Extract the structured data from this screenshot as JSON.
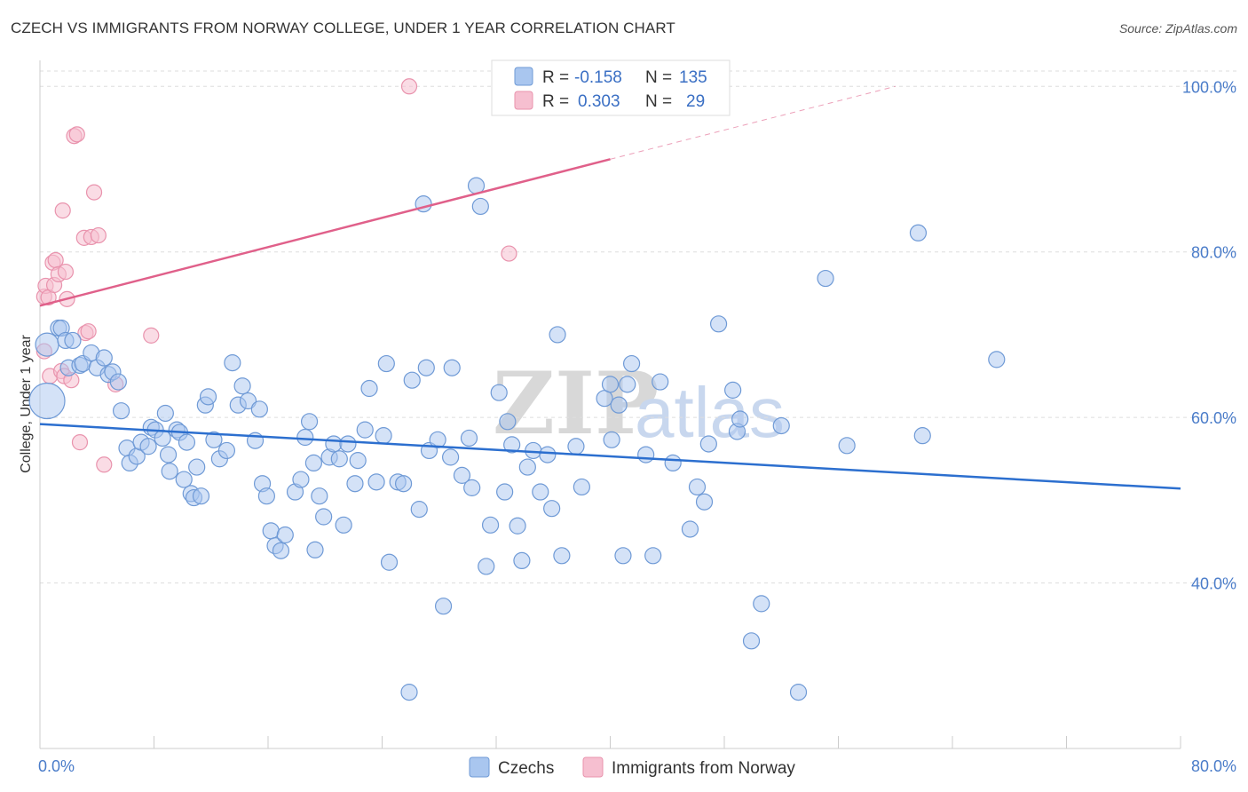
{
  "title": "CZECH VS IMMIGRANTS FROM NORWAY COLLEGE, UNDER 1 YEAR CORRELATION CHART",
  "source": "Source: ZipAtlas.com",
  "colors": {
    "blue_fill": "#a9c6ef",
    "blue_stroke": "#6f9ad6",
    "blue_line": "#2c6fcf",
    "pink_fill": "#f6bfd0",
    "pink_stroke": "#e993ad",
    "pink_line": "#e0608a",
    "grid": "#dddddd",
    "tick_text": "#4a7cc9"
  },
  "chart_data": {
    "type": "scatter",
    "title": "CZECH VS IMMIGRANTS FROM NORWAY COLLEGE, UNDER 1 YEAR CORRELATION CHART",
    "xlabel": "",
    "ylabel": "College, Under 1 year",
    "xlim": [
      0,
      80
    ],
    "ylim": [
      20,
      104
    ],
    "x_ticks": [
      "0.0%",
      "80.0%"
    ],
    "y_ticks": [
      {
        "value": 100,
        "label": "100.0%"
      },
      {
        "value": 80,
        "label": "80.0%"
      },
      {
        "value": 60,
        "label": "60.0%"
      },
      {
        "value": 40,
        "label": "40.0%"
      }
    ],
    "legend": [
      {
        "name": "Czechs",
        "r_label": "R =",
        "r": "-0.158",
        "n_label": "N =",
        "n": "135"
      },
      {
        "name": "Immigrants from Norway",
        "r_label": "R =",
        "r": "0.303",
        "n_label": "N =",
        "n": "29"
      }
    ],
    "watermark": {
      "zip": "ZIP",
      "atlas": "atlas"
    },
    "series": [
      {
        "name": "Czechs",
        "trend": {
          "x0": 0,
          "y0": 59.2,
          "x1": 80,
          "y1": 51.4
        },
        "points": [
          [
            0.5,
            62.0
          ],
          [
            0.5,
            68.8
          ],
          [
            1.3,
            70.8
          ],
          [
            1.5,
            70.8
          ],
          [
            1.8,
            69.3
          ],
          [
            2.0,
            66.0
          ],
          [
            2.3,
            69.3
          ],
          [
            2.8,
            66.3
          ],
          [
            3.0,
            66.5
          ],
          [
            3.6,
            67.8
          ],
          [
            4.0,
            66.0
          ],
          [
            4.5,
            67.2
          ],
          [
            4.8,
            65.2
          ],
          [
            5.1,
            65.5
          ],
          [
            5.5,
            64.3
          ],
          [
            5.7,
            60.8
          ],
          [
            6.1,
            56.3
          ],
          [
            6.3,
            54.5
          ],
          [
            6.8,
            55.3
          ],
          [
            7.1,
            57.0
          ],
          [
            7.6,
            56.5
          ],
          [
            7.8,
            58.8
          ],
          [
            8.1,
            58.5
          ],
          [
            8.6,
            57.5
          ],
          [
            8.8,
            60.5
          ],
          [
            9.0,
            55.5
          ],
          [
            9.1,
            53.5
          ],
          [
            9.6,
            58.5
          ],
          [
            9.8,
            58.2
          ],
          [
            10.1,
            52.5
          ],
          [
            10.3,
            57.0
          ],
          [
            10.6,
            50.8
          ],
          [
            10.8,
            50.3
          ],
          [
            11.0,
            54.0
          ],
          [
            11.3,
            50.5
          ],
          [
            11.6,
            61.5
          ],
          [
            11.8,
            62.5
          ],
          [
            12.2,
            57.3
          ],
          [
            12.6,
            55.0
          ],
          [
            13.1,
            56.0
          ],
          [
            13.5,
            66.6
          ],
          [
            13.9,
            61.5
          ],
          [
            14.2,
            63.8
          ],
          [
            14.6,
            62.0
          ],
          [
            15.1,
            57.2
          ],
          [
            15.6,
            52.0
          ],
          [
            15.9,
            50.5
          ],
          [
            16.2,
            46.3
          ],
          [
            16.5,
            44.5
          ],
          [
            16.9,
            43.9
          ],
          [
            17.2,
            45.8
          ],
          [
            17.9,
            51.0
          ],
          [
            18.3,
            52.5
          ],
          [
            18.6,
            57.6
          ],
          [
            18.9,
            59.5
          ],
          [
            19.2,
            54.5
          ],
          [
            19.6,
            50.5
          ],
          [
            19.9,
            48.0
          ],
          [
            20.3,
            55.2
          ],
          [
            20.6,
            56.8
          ],
          [
            21.0,
            55.0
          ],
          [
            21.3,
            47.0
          ],
          [
            21.6,
            56.8
          ],
          [
            22.1,
            52.0
          ],
          [
            22.3,
            54.8
          ],
          [
            22.8,
            58.5
          ],
          [
            23.1,
            63.5
          ],
          [
            23.6,
            52.2
          ],
          [
            24.1,
            57.8
          ],
          [
            24.3,
            66.5
          ],
          [
            24.5,
            42.5
          ],
          [
            25.1,
            52.2
          ],
          [
            25.5,
            52.0
          ],
          [
            25.9,
            26.8
          ],
          [
            26.1,
            64.5
          ],
          [
            26.6,
            48.9
          ],
          [
            27.1,
            66.0
          ],
          [
            27.3,
            56.0
          ],
          [
            27.9,
            57.3
          ],
          [
            28.3,
            37.2
          ],
          [
            28.8,
            55.2
          ],
          [
            28.9,
            66.0
          ],
          [
            29.6,
            53.0
          ],
          [
            30.1,
            57.5
          ],
          [
            30.3,
            51.5
          ],
          [
            30.6,
            88.0
          ],
          [
            30.9,
            85.5
          ],
          [
            31.3,
            42.0
          ],
          [
            31.6,
            47.0
          ],
          [
            32.2,
            63.0
          ],
          [
            32.6,
            51.0
          ],
          [
            32.8,
            59.5
          ],
          [
            33.1,
            56.7
          ],
          [
            33.5,
            46.9
          ],
          [
            33.8,
            42.7
          ],
          [
            34.2,
            54.0
          ],
          [
            34.6,
            56.0
          ],
          [
            35.1,
            51.0
          ],
          [
            35.6,
            55.5
          ],
          [
            35.9,
            49.0
          ],
          [
            36.3,
            70.0
          ],
          [
            36.6,
            43.3
          ],
          [
            37.6,
            56.5
          ],
          [
            38.0,
            51.6
          ],
          [
            39.6,
            62.3
          ],
          [
            40.1,
            57.3
          ],
          [
            40.6,
            61.5
          ],
          [
            40.9,
            43.3
          ],
          [
            41.2,
            64.0
          ],
          [
            41.5,
            66.5
          ],
          [
            42.5,
            55.5
          ],
          [
            43.0,
            43.3
          ],
          [
            43.5,
            64.3
          ],
          [
            44.4,
            54.5
          ],
          [
            45.6,
            46.5
          ],
          [
            46.1,
            51.6
          ],
          [
            46.6,
            49.8
          ],
          [
            46.9,
            56.8
          ],
          [
            47.6,
            71.3
          ],
          [
            48.6,
            63.3
          ],
          [
            48.9,
            58.3
          ],
          [
            49.1,
            59.8
          ],
          [
            49.9,
            33.0
          ],
          [
            50.6,
            37.5
          ],
          [
            52.0,
            59.0
          ],
          [
            53.2,
            26.8
          ],
          [
            55.1,
            76.8
          ],
          [
            56.6,
            56.6
          ],
          [
            61.6,
            82.3
          ],
          [
            61.9,
            57.8
          ],
          [
            67.1,
            67.0
          ],
          [
            15.4,
            61.0
          ],
          [
            19.3,
            44.0
          ],
          [
            26.9,
            85.8
          ],
          [
            40.0,
            64.0
          ]
        ]
      },
      {
        "name": "Immigrants from Norway",
        "trend": {
          "x0": 0,
          "y0": 73.5,
          "x1": 40,
          "y1": 91.2,
          "dash_x1": 60,
          "dash_y1": 100.0
        },
        "points": [
          [
            0.3,
            68.0
          ],
          [
            0.3,
            74.6
          ],
          [
            0.4,
            75.9
          ],
          [
            0.6,
            74.5
          ],
          [
            0.7,
            65.0
          ],
          [
            0.9,
            78.7
          ],
          [
            1.0,
            76.0
          ],
          [
            1.1,
            79.0
          ],
          [
            1.3,
            77.3
          ],
          [
            1.5,
            65.6
          ],
          [
            1.6,
            85.0
          ],
          [
            1.7,
            65.0
          ],
          [
            1.8,
            77.6
          ],
          [
            1.9,
            74.3
          ],
          [
            2.2,
            64.5
          ],
          [
            2.4,
            94.0
          ],
          [
            2.6,
            94.2
          ],
          [
            2.8,
            57.0
          ],
          [
            3.1,
            81.7
          ],
          [
            3.2,
            70.2
          ],
          [
            3.4,
            70.4
          ],
          [
            3.6,
            81.8
          ],
          [
            3.8,
            87.2
          ],
          [
            4.1,
            82.0
          ],
          [
            4.5,
            54.3
          ],
          [
            5.3,
            64.0
          ],
          [
            7.8,
            69.9
          ],
          [
            25.9,
            100.0
          ],
          [
            32.9,
            79.8
          ]
        ]
      }
    ]
  }
}
